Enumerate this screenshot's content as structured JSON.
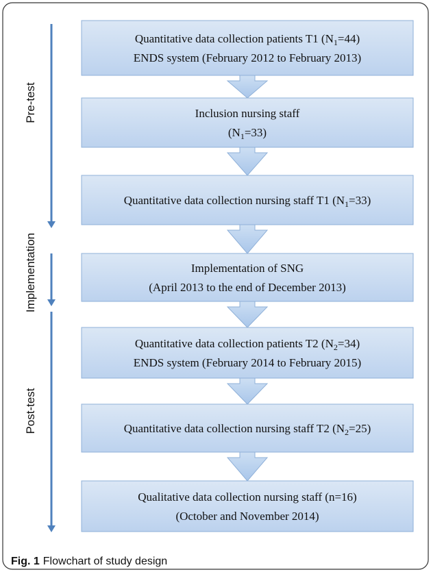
{
  "nodes": [
    {
      "lines": [
        {
          "pre": "Quantitative data collection patients T1 (N",
          "sub": "1",
          "post": "=44)"
        },
        {
          "text": "ENDS system (February 2012  to February 2013)"
        }
      ]
    },
    {
      "lines": [
        {
          "text": "Inclusion nursing staff"
        },
        {
          "pre": "(N",
          "sub": "1",
          "post": "=33)"
        }
      ]
    },
    {
      "lines": [
        {
          "pre": "Quantitative data collection nursing staff  T1 (N",
          "sub": "1",
          "post": "=33)"
        }
      ]
    },
    {
      "lines": [
        {
          "text": "Implementation of SNG"
        },
        {
          "text": "(April 2013 to the end of December 2013)"
        }
      ]
    },
    {
      "lines": [
        {
          "pre": "Quantitative data collection patients T2 (N",
          "sub": "2",
          "post": "=34)"
        },
        {
          "text": "ENDS system (February 2014 to February 2015)"
        }
      ]
    },
    {
      "lines": [
        {
          "pre": "Quantitative data collection nursing staff T2 (N",
          "sub": "2",
          "post": "=25)"
        }
      ]
    },
    {
      "lines": [
        {
          "text": "Qualitative data collection nursing staff (n=16)"
        },
        {
          "text": "(October and November 2014)"
        }
      ]
    }
  ],
  "phases": [
    {
      "label": "Pre-test"
    },
    {
      "label": "Implementation"
    },
    {
      "label": "Post-test"
    }
  ],
  "caption": {
    "label": "Fig. 1",
    "text": "Flowchart of study design"
  }
}
